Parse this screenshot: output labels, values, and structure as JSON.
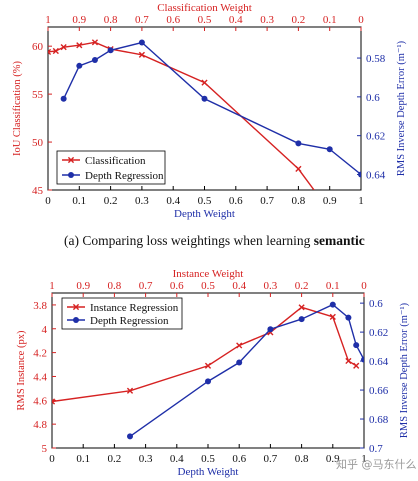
{
  "caption": {
    "prefix": "(a) Comparing loss weightings when learning ",
    "bold": "semantic"
  },
  "watermark": "知乎 @马东什么",
  "chart_data": [
    {
      "type": "line",
      "title": "Classification Weight",
      "xlabel": "Depth Weight",
      "x2label": "Classification Weight",
      "ylabel": "IoU Classification (%)",
      "y2label": "RMS Inverse Depth Error (m⁻¹)",
      "xlim": [
        0,
        1
      ],
      "xticks": [
        "0",
        "0.1",
        "0.2",
        "0.3",
        "0.4",
        "0.5",
        "0.6",
        "0.7",
        "0.8",
        "0.9",
        "1"
      ],
      "x2ticks": [
        "1",
        "0.9",
        "0.8",
        "0.7",
        "0.6",
        "0.5",
        "0.4",
        "0.3",
        "0.2",
        "0.1",
        "0"
      ],
      "ylim": [
        45,
        62
      ],
      "yticks": [
        45,
        50,
        55,
        60
      ],
      "y2lim": [
        0.564,
        0.648
      ],
      "y2ticks": [
        "0.58",
        "0.6",
        "0.62",
        "0.64"
      ],
      "y2_inverted": true,
      "legend_position": "bottom-left",
      "series": [
        {
          "name": "Classification",
          "axis": "left",
          "color": "#d62222",
          "marker": "x",
          "x": [
            0,
            0.025,
            0.05,
            0.1,
            0.15,
            0.2,
            0.3,
            0.5,
            0.8,
            0.85
          ],
          "y": [
            59.4,
            59.5,
            59.9,
            60.1,
            60.4,
            59.7,
            59.1,
            56.2,
            47.2,
            45.0
          ],
          "marked": [
            true,
            true,
            true,
            true,
            true,
            true,
            true,
            true,
            true,
            false
          ]
        },
        {
          "name": "Depth Regression",
          "axis": "right",
          "color": "#1f2fa8",
          "marker": "o",
          "x": [
            0.05,
            0.1,
            0.15,
            0.2,
            0.3,
            0.5,
            0.8,
            0.9,
            1.0
          ],
          "y": [
            0.601,
            0.584,
            0.581,
            0.576,
            0.572,
            0.601,
            0.624,
            0.627,
            0.64
          ]
        }
      ]
    },
    {
      "type": "line",
      "title": "Instance Weight",
      "xlabel": "Depth Weight",
      "x2label": "Instance Weight",
      "ylabel": "RMS Instance (px)",
      "y2label": "RMS Inverse Depth Error (m⁻¹)",
      "xlim": [
        0,
        1
      ],
      "xticks": [
        "0",
        "0.1",
        "0.2",
        "0.3",
        "0.4",
        "0.5",
        "0.6",
        "0.7",
        "0.8",
        "0.9",
        "1"
      ],
      "x2ticks": [
        "1",
        "0.9",
        "0.8",
        "0.7",
        "0.6",
        "0.5",
        "0.4",
        "0.3",
        "0.2",
        "0.1",
        "0"
      ],
      "ylim": [
        3.7,
        5.0
      ],
      "yticks": [
        "3.8",
        "4",
        "4.2",
        "4.4",
        "4.6",
        "4.8",
        "5"
      ],
      "y_inverted": true,
      "y2lim": [
        0.593,
        0.7
      ],
      "y2ticks": [
        "0.6",
        "0.62",
        "0.64",
        "0.66",
        "0.68",
        "0.7"
      ],
      "y2_inverted": true,
      "legend_position": "top-left",
      "series": [
        {
          "name": "Instance Regression",
          "axis": "left",
          "color": "#d62222",
          "marker": "x",
          "x": [
            0,
            0.25,
            0.5,
            0.6,
            0.7,
            0.8,
            0.9,
            0.95,
            0.975
          ],
          "y": [
            4.61,
            4.52,
            4.31,
            4.14,
            4.03,
            3.82,
            3.9,
            4.27,
            4.31
          ]
        },
        {
          "name": "Depth Regression",
          "axis": "right",
          "color": "#1f2fa8",
          "marker": "o",
          "x": [
            0.25,
            0.5,
            0.6,
            0.7,
            0.8,
            0.9,
            0.95,
            0.975,
            1.0
          ],
          "y": [
            0.692,
            0.654,
            0.641,
            0.618,
            0.611,
            0.601,
            0.61,
            0.629,
            0.639
          ]
        }
      ]
    }
  ]
}
